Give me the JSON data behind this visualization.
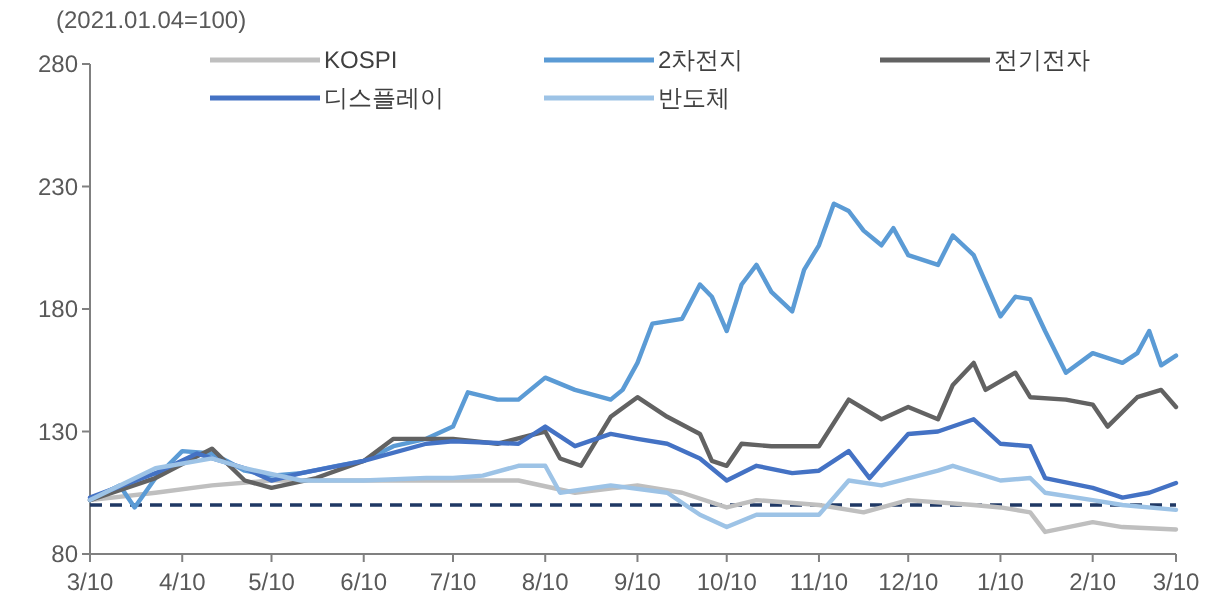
{
  "chart_data": {
    "type": "line",
    "annotations": [
      "(2021.01.04=100)"
    ],
    "xlim": [
      "2021-03-10",
      "2022-03-10"
    ],
    "xticks": [
      {
        "value": "2021-03-10",
        "label": "3/10"
      },
      {
        "value": "2021-04-10",
        "label": "4/10"
      },
      {
        "value": "2021-05-10",
        "label": "5/10"
      },
      {
        "value": "2021-06-10",
        "label": "6/10"
      },
      {
        "value": "2021-07-10",
        "label": "7/10"
      },
      {
        "value": "2021-08-10",
        "label": "8/10"
      },
      {
        "value": "2021-09-10",
        "label": "9/10"
      },
      {
        "value": "2021-10-10",
        "label": "10/10"
      },
      {
        "value": "2021-11-10",
        "label": "11/10"
      },
      {
        "value": "2021-12-10",
        "label": "12/10"
      },
      {
        "value": "2022-01-10",
        "label": "1/10"
      },
      {
        "value": "2022-02-10",
        "label": "2/10"
      },
      {
        "value": "2022-03-10",
        "label": "3/10"
      }
    ],
    "ylim": [
      80,
      280
    ],
    "yticks": [
      80,
      130,
      180,
      230,
      280
    ],
    "grid": false,
    "legend": "top",
    "marker": "none",
    "line_style": "solid",
    "ref_lines": [
      {
        "axis": "y",
        "value": 100,
        "color": "#1f3864",
        "line_style": "dashed"
      }
    ],
    "series": [
      {
        "name": "KOSPI",
        "color": "#bfbfbf",
        "x": [
          "2021-03-10",
          "2021-04-01",
          "2021-04-20",
          "2021-05-10",
          "2021-06-10",
          "2021-07-10",
          "2021-08-01",
          "2021-08-20",
          "2021-09-10",
          "2021-09-25",
          "2021-10-10",
          "2021-10-20",
          "2021-11-10",
          "2021-11-25",
          "2021-12-10",
          "2022-01-01",
          "2022-01-10",
          "2022-01-20",
          "2022-01-25",
          "2022-02-10",
          "2022-02-20",
          "2022-03-10"
        ],
        "values": [
          102,
          105,
          108,
          110,
          110,
          110,
          110,
          105,
          108,
          105,
          99,
          102,
          100,
          97,
          102,
          100,
          99,
          97,
          89,
          93,
          91,
          90
        ]
      },
      {
        "name": "2차전지",
        "color": "#5b9bd5",
        "x": [
          "2021-03-10",
          "2021-03-20",
          "2021-03-25",
          "2021-04-01",
          "2021-04-10",
          "2021-04-20",
          "2021-04-25",
          "2021-05-01",
          "2021-05-10",
          "2021-05-20",
          "2021-06-01",
          "2021-06-10",
          "2021-06-20",
          "2021-07-01",
          "2021-07-10",
          "2021-07-15",
          "2021-07-25",
          "2021-08-01",
          "2021-08-10",
          "2021-08-20",
          "2021-09-01",
          "2021-09-05",
          "2021-09-10",
          "2021-09-15",
          "2021-09-25",
          "2021-10-01",
          "2021-10-05",
          "2021-10-10",
          "2021-10-15",
          "2021-10-20",
          "2021-10-25",
          "2021-11-01",
          "2021-11-05",
          "2021-11-10",
          "2021-11-15",
          "2021-11-20",
          "2021-11-25",
          "2021-12-01",
          "2021-12-05",
          "2021-12-10",
          "2021-12-20",
          "2021-12-25",
          "2022-01-01",
          "2022-01-10",
          "2022-01-15",
          "2022-01-20",
          "2022-01-25",
          "2022-02-01",
          "2022-02-10",
          "2022-02-20",
          "2022-02-25",
          "2022-03-01",
          "2022-03-05",
          "2022-03-10"
        ],
        "values": [
          102,
          108,
          99,
          111,
          122,
          121,
          118,
          114,
          112,
          113,
          116,
          118,
          124,
          127,
          132,
          146,
          143,
          143,
          152,
          147,
          143,
          147,
          158,
          174,
          176,
          190,
          185,
          171,
          190,
          198,
          187,
          179,
          196,
          206,
          223,
          220,
          212,
          206,
          213,
          202,
          198,
          210,
          202,
          177,
          185,
          184,
          171,
          154,
          162,
          158,
          162,
          171,
          157,
          161
        ]
      },
      {
        "name": "전기전자",
        "color": "#626262",
        "x": [
          "2021-03-10",
          "2021-04-01",
          "2021-04-20",
          "2021-05-01",
          "2021-05-10",
          "2021-05-25",
          "2021-06-10",
          "2021-06-20",
          "2021-07-10",
          "2021-07-25",
          "2021-08-10",
          "2021-08-15",
          "2021-08-22",
          "2021-09-01",
          "2021-09-10",
          "2021-09-20",
          "2021-10-01",
          "2021-10-05",
          "2021-10-10",
          "2021-10-15",
          "2021-10-25",
          "2021-11-10",
          "2021-11-20",
          "2021-12-01",
          "2021-12-10",
          "2021-12-20",
          "2021-12-25",
          "2022-01-01",
          "2022-01-05",
          "2022-01-15",
          "2022-01-20",
          "2022-02-01",
          "2022-02-10",
          "2022-02-15",
          "2022-02-25",
          "2022-03-05",
          "2022-03-10"
        ],
        "values": [
          102,
          111,
          123,
          110,
          107,
          111,
          118,
          127,
          127,
          125,
          130,
          119,
          116,
          136,
          144,
          136,
          129,
          118,
          116,
          125,
          124,
          124,
          143,
          135,
          140,
          135,
          149,
          158,
          147,
          154,
          144,
          143,
          141,
          132,
          144,
          147,
          140
        ]
      },
      {
        "name": "디스플레이",
        "color": "#4472c4",
        "x": [
          "2021-03-10",
          "2021-04-01",
          "2021-04-15",
          "2021-05-01",
          "2021-05-10",
          "2021-05-20",
          "2021-06-10",
          "2021-07-01",
          "2021-07-10",
          "2021-08-01",
          "2021-08-10",
          "2021-08-20",
          "2021-09-01",
          "2021-09-10",
          "2021-09-20",
          "2021-10-01",
          "2021-10-10",
          "2021-10-20",
          "2021-11-01",
          "2021-11-10",
          "2021-11-20",
          "2021-11-27",
          "2021-12-10",
          "2021-12-20",
          "2022-01-01",
          "2022-01-10",
          "2022-01-20",
          "2022-01-25",
          "2022-02-10",
          "2022-02-20",
          "2022-03-01",
          "2022-03-10"
        ],
        "values": [
          103,
          113,
          121,
          115,
          110,
          113,
          118,
          125,
          126,
          125,
          132,
          124,
          129,
          127,
          125,
          119,
          110,
          116,
          113,
          114,
          122,
          111,
          129,
          130,
          135,
          125,
          124,
          111,
          107,
          103,
          105,
          109
        ]
      },
      {
        "name": "반도체",
        "color": "#9dc3e6",
        "x": [
          "2021-03-10",
          "2021-04-01",
          "2021-04-20",
          "2021-05-01",
          "2021-05-20",
          "2021-06-10",
          "2021-07-01",
          "2021-07-10",
          "2021-07-20",
          "2021-08-01",
          "2021-08-10",
          "2021-08-15",
          "2021-09-01",
          "2021-09-20",
          "2021-10-01",
          "2021-10-10",
          "2021-10-20",
          "2021-11-10",
          "2021-11-20",
          "2021-12-01",
          "2021-12-20",
          "2021-12-25",
          "2022-01-10",
          "2022-01-20",
          "2022-01-25",
          "2022-02-10",
          "2022-02-20",
          "2022-03-10"
        ],
        "values": [
          102,
          115,
          119,
          115,
          110,
          110,
          111,
          111,
          112,
          116,
          116,
          105,
          108,
          105,
          96,
          91,
          96,
          96,
          110,
          108,
          114,
          116,
          110,
          111,
          105,
          102,
          100,
          98
        ]
      }
    ]
  }
}
